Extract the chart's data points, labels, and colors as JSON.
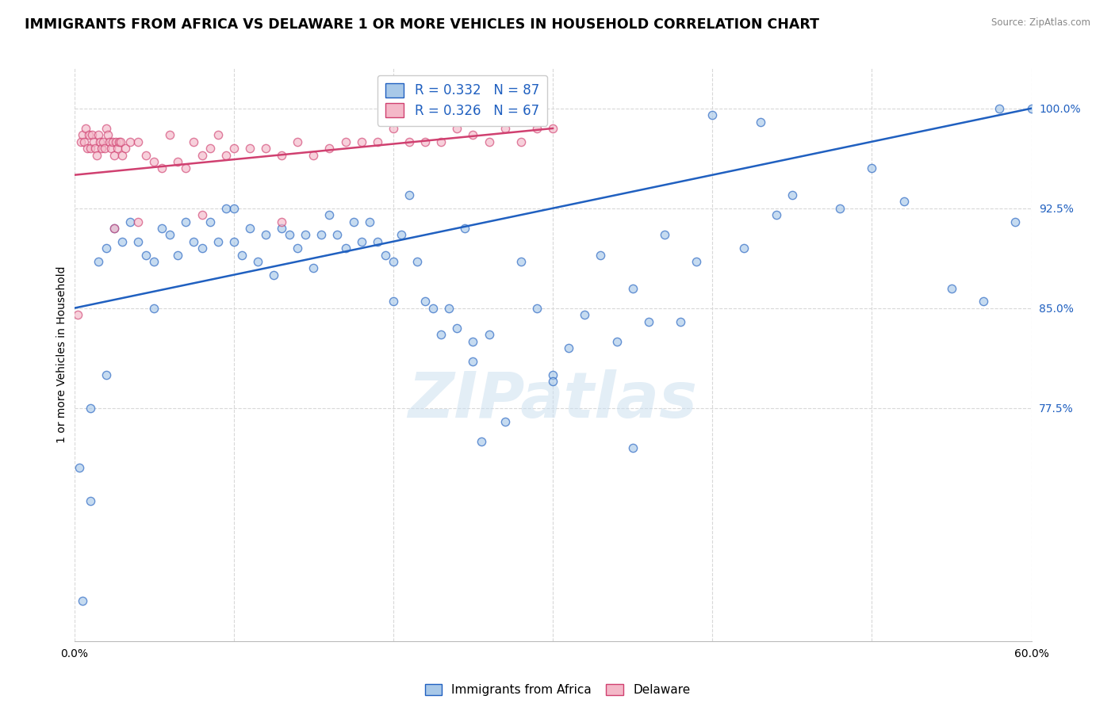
{
  "title": "IMMIGRANTS FROM AFRICA VS DELAWARE 1 OR MORE VEHICLES IN HOUSEHOLD CORRELATION CHART",
  "source": "Source: ZipAtlas.com",
  "legend_blue_label": "Immigrants from Africa",
  "legend_pink_label": "Delaware",
  "R_blue": 0.332,
  "N_blue": 87,
  "R_pink": 0.326,
  "N_pink": 67,
  "blue_color": "#a8c8e8",
  "pink_color": "#f4b8c8",
  "line_blue": "#2060c0",
  "line_pink": "#d04070",
  "watermark_text": "ZIPatlas",
  "ylabel": "1 or more Vehicles in Household",
  "xlim": [
    0,
    60
  ],
  "ylim": [
    60,
    103
  ],
  "y_ticks": [
    77.5,
    85.0,
    92.5,
    100.0
  ],
  "y_tick_labels": [
    "77.5%",
    "85.0%",
    "92.5%",
    "100.0%"
  ],
  "x_ticks": [
    0,
    10,
    20,
    30,
    40,
    50,
    60
  ],
  "x_tick_labels": [
    "0.0%",
    "",
    "",
    "",
    "",
    "",
    "60.0%"
  ],
  "background_color": "#ffffff",
  "grid_color": "#d8d8d8",
  "title_fontsize": 12.5,
  "axis_label_fontsize": 10,
  "tick_fontsize": 10,
  "scatter_size": 55,
  "scatter_alpha": 0.65,
  "scatter_linewidth": 1.0,
  "blue_line_x0": 0,
  "blue_line_x1": 60,
  "blue_line_y0": 85.0,
  "blue_line_y1": 100.0,
  "pink_line_x0": 0,
  "pink_line_x1": 30,
  "pink_line_y0": 95.0,
  "pink_line_y1": 98.5,
  "blue_x": [
    0.5,
    1.0,
    1.5,
    2.0,
    2.5,
    3.0,
    3.5,
    4.0,
    4.5,
    5.0,
    5.5,
    6.0,
    6.5,
    7.0,
    7.5,
    8.0,
    8.5,
    9.0,
    9.5,
    10.0,
    10.5,
    11.0,
    11.5,
    12.0,
    12.5,
    13.0,
    13.5,
    14.0,
    14.5,
    15.0,
    15.5,
    16.0,
    16.5,
    17.0,
    17.5,
    18.0,
    18.5,
    19.0,
    19.5,
    20.0,
    20.5,
    21.0,
    21.5,
    22.0,
    22.5,
    23.0,
    23.5,
    24.0,
    24.5,
    25.0,
    25.5,
    26.0,
    27.0,
    28.0,
    29.0,
    30.0,
    31.0,
    32.0,
    33.0,
    34.0,
    35.0,
    36.0,
    37.0,
    38.0,
    39.0,
    40.0,
    42.0,
    43.0,
    44.0,
    45.0,
    48.0,
    50.0,
    52.0,
    55.0,
    57.0,
    58.0,
    59.0,
    60.0,
    35.0,
    30.0,
    25.0,
    20.0,
    10.0,
    5.0,
    2.0,
    1.0,
    0.3
  ],
  "blue_y": [
    63.0,
    70.5,
    88.5,
    89.5,
    91.0,
    90.0,
    91.5,
    90.0,
    89.0,
    88.5,
    91.0,
    90.5,
    89.0,
    91.5,
    90.0,
    89.5,
    91.5,
    90.0,
    92.5,
    90.0,
    89.0,
    91.0,
    88.5,
    90.5,
    87.5,
    91.0,
    90.5,
    89.5,
    90.5,
    88.0,
    90.5,
    92.0,
    90.5,
    89.5,
    91.5,
    90.0,
    91.5,
    90.0,
    89.0,
    85.5,
    90.5,
    93.5,
    88.5,
    85.5,
    85.0,
    83.0,
    85.0,
    83.5,
    91.0,
    81.0,
    75.0,
    83.0,
    76.5,
    88.5,
    85.0,
    80.0,
    82.0,
    84.5,
    89.0,
    82.5,
    86.5,
    84.0,
    90.5,
    84.0,
    88.5,
    99.5,
    89.5,
    99.0,
    92.0,
    93.5,
    92.5,
    95.5,
    93.0,
    86.5,
    85.5,
    100.0,
    91.5,
    100.0,
    74.5,
    79.5,
    82.5,
    88.5,
    92.5,
    85.0,
    80.0,
    77.5,
    73.0
  ],
  "pink_x": [
    0.2,
    0.4,
    0.5,
    0.6,
    0.7,
    0.8,
    0.9,
    1.0,
    1.1,
    1.2,
    1.3,
    1.4,
    1.5,
    1.6,
    1.7,
    1.8,
    1.9,
    2.0,
    2.1,
    2.2,
    2.3,
    2.4,
    2.5,
    2.6,
    2.7,
    2.8,
    2.9,
    3.0,
    3.2,
    3.5,
    4.0,
    4.5,
    5.0,
    5.5,
    6.0,
    6.5,
    7.0,
    7.5,
    8.0,
    8.5,
    9.0,
    9.5,
    10.0,
    11.0,
    12.0,
    13.0,
    14.0,
    15.0,
    16.0,
    17.0,
    18.0,
    19.0,
    20.0,
    21.0,
    22.0,
    23.0,
    24.0,
    25.0,
    26.0,
    27.0,
    28.0,
    29.0,
    30.0,
    8.0,
    4.0,
    2.5,
    13.0
  ],
  "pink_y": [
    84.5,
    97.5,
    98.0,
    97.5,
    98.5,
    97.0,
    98.0,
    97.0,
    98.0,
    97.5,
    97.0,
    96.5,
    98.0,
    97.5,
    97.0,
    97.5,
    97.0,
    98.5,
    98.0,
    97.5,
    97.0,
    97.5,
    96.5,
    97.5,
    97.0,
    97.5,
    97.5,
    96.5,
    97.0,
    97.5,
    97.5,
    96.5,
    96.0,
    95.5,
    98.0,
    96.0,
    95.5,
    97.5,
    96.5,
    97.0,
    98.0,
    96.5,
    97.0,
    97.0,
    97.0,
    96.5,
    97.5,
    96.5,
    97.0,
    97.5,
    97.5,
    97.5,
    98.5,
    97.5,
    97.5,
    97.5,
    98.5,
    98.0,
    97.5,
    98.5,
    97.5,
    98.5,
    98.5,
    92.0,
    91.5,
    91.0,
    91.5
  ]
}
